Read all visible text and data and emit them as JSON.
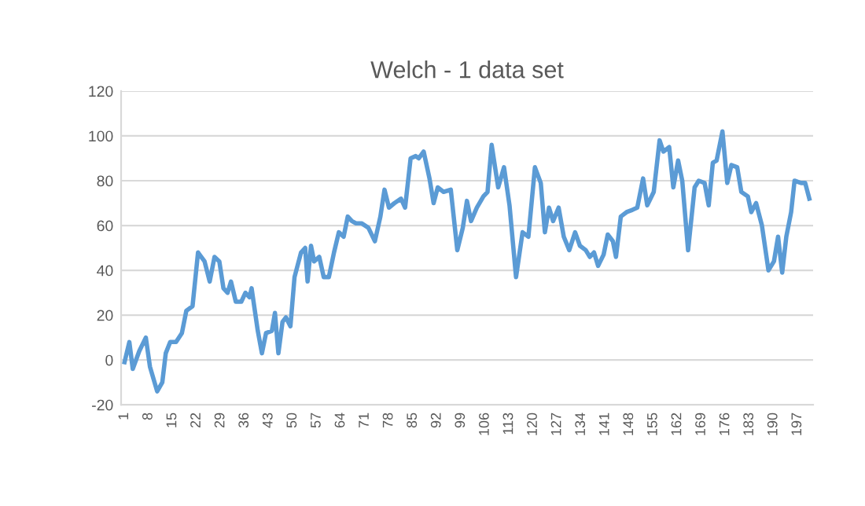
{
  "chart_data": {
    "type": "line",
    "title": "Welch - 1 data set",
    "x": [
      1,
      2.4,
      3.4,
      5.3,
      7.2,
      8.4,
      10.5,
      12,
      13,
      14.3,
      16,
      17.7,
      19,
      20.8,
      22.4,
      24.3,
      25.8,
      27.2,
      28.6,
      29.8,
      31,
      32,
      33.4,
      35,
      36.2,
      37.4,
      38,
      39.8,
      41,
      42.2,
      43.9,
      44.8,
      45.8,
      47,
      48,
      49.3,
      50.5,
      52.4,
      53.6,
      54.3,
      55.3,
      56.2,
      57.7,
      59,
      60.5,
      62,
      63.4,
      64.8,
      66,
      67.2,
      68.4,
      70,
      72,
      73.9,
      75.5,
      76.7,
      78,
      79.6,
      81.5,
      82.7,
      84.3,
      85.8,
      86.7,
      88.1,
      89.8,
      91,
      92.2,
      93.9,
      96,
      97.9,
      99.5,
      100.7,
      101.9,
      103.6,
      105.5,
      106.7,
      107.9,
      109.8,
      111.5,
      113.1,
      115,
      116.9,
      118.6,
      120.5,
      122.2,
      123.4,
      124.6,
      125.8,
      127.4,
      128.9,
      130.5,
      132.2,
      133.6,
      135.3,
      136.5,
      137.7,
      138.9,
      140.5,
      141.7,
      143.2,
      144.1,
      145.5,
      147.2,
      148.9,
      150.3,
      152,
      153.2,
      155.1,
      156.8,
      157.9,
      159.6,
      160.8,
      162.2,
      163.4,
      165.1,
      167,
      168.2,
      169.9,
      171.1,
      172.3,
      173.4,
      175.1,
      176.5,
      177.7,
      179.4,
      180.6,
      182.5,
      183.5,
      184.9,
      186.6,
      188.5,
      190.1,
      191.3,
      192.5,
      193.7,
      195.1,
      196.1,
      198,
      199.2,
      200.4
    ],
    "series": [
      {
        "color": "#5b9bd5",
        "values": [
          -1,
          8,
          -4,
          4,
          10,
          -3,
          -14,
          -10,
          3,
          8,
          8,
          12,
          22,
          24,
          48,
          44,
          35,
          46,
          44,
          32,
          30,
          35,
          26,
          26,
          30,
          28,
          32,
          13,
          3,
          12,
          13,
          21,
          3,
          17,
          19,
          15,
          37,
          48,
          50,
          35,
          51,
          44,
          46,
          37,
          37,
          48,
          57,
          55,
          64,
          62,
          61,
          61,
          59,
          53,
          64,
          76,
          68,
          70,
          72,
          68,
          90,
          91,
          90,
          93,
          81,
          70,
          77,
          75,
          76,
          49,
          59,
          71,
          62,
          68,
          73,
          75,
          96,
          77,
          86,
          69,
          37,
          57,
          55,
          86,
          79,
          57,
          68,
          62,
          68,
          55,
          49,
          57,
          51,
          49,
          46,
          48,
          42,
          47,
          56,
          53,
          46,
          64,
          66,
          67,
          68,
          81,
          69,
          75,
          98,
          93,
          95,
          77,
          89,
          80,
          49,
          77,
          80,
          79,
          69,
          88,
          89,
          102,
          79,
          87,
          86,
          75,
          73,
          66,
          70,
          60,
          40,
          44,
          55,
          39,
          55,
          66,
          80,
          79,
          79,
          72
        ]
      }
    ],
    "xlim": [
      0,
      201.5
    ],
    "xticks": [
      1,
      8,
      15,
      22,
      29,
      36,
      43,
      50,
      57,
      64,
      71,
      78,
      85,
      92,
      99,
      106,
      113,
      120,
      127,
      134,
      141,
      148,
      155,
      162,
      169,
      176,
      183,
      190,
      197
    ],
    "ylim": [
      -20,
      120
    ],
    "yticks": [
      -20,
      0,
      20,
      40,
      60,
      80,
      100,
      120
    ],
    "grid": "y",
    "marker": "none",
    "line_style": "solid"
  }
}
